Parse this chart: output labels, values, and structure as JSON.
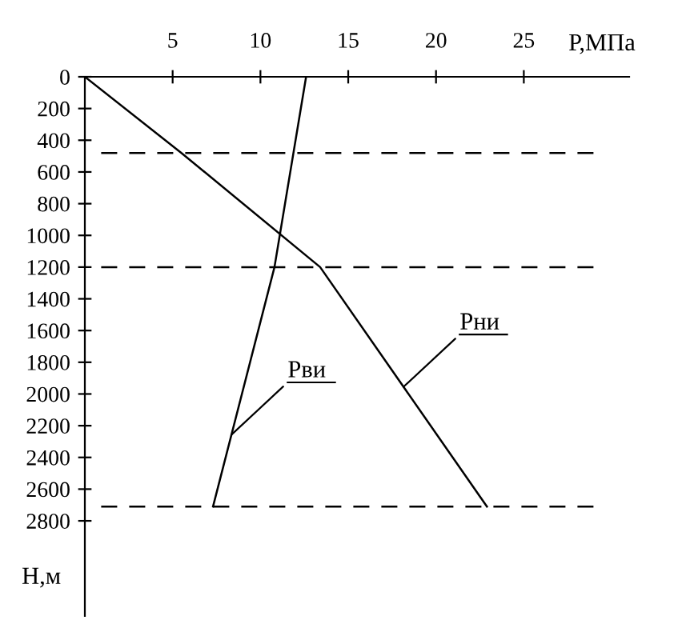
{
  "chart_data": {
    "type": "line",
    "xlabel": "Р,МПа",
    "ylabel": "Н,м",
    "xlim": [
      0,
      31
    ],
    "xticks": [
      5,
      10,
      15,
      20,
      25
    ],
    "ylim": [
      3400,
      0
    ],
    "yticks": [
      0,
      200,
      400,
      600,
      800,
      1000,
      1200,
      1400,
      1600,
      1800,
      2000,
      2200,
      2400,
      2600,
      2800
    ],
    "series": [
      {
        "name": "Рви",
        "color": "#000000",
        "x": [
          12.6,
          10.8,
          7.3
        ],
        "values": [
          0,
          1200,
          2710
        ]
      },
      {
        "name": "Рни",
        "color": "#000000",
        "x": [
          0,
          5.5,
          13.4,
          22.9
        ],
        "values": [
          0,
          480,
          1200,
          2710
        ]
      }
    ],
    "ref_lines": [
      {
        "axis": "y",
        "value": 480,
        "color": "#000000",
        "line_style": "dashed"
      },
      {
        "axis": "y",
        "value": 1200,
        "color": "#000000",
        "line_style": "dashed"
      },
      {
        "axis": "y",
        "value": 2710,
        "color": "#000000",
        "line_style": "dashed"
      }
    ],
    "grid": false,
    "marker": "none",
    "line_style": "solid"
  }
}
